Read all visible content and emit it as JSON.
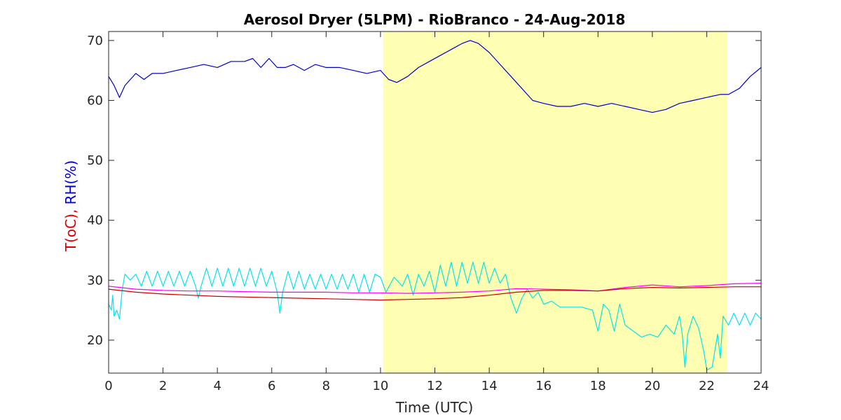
{
  "chart_data": {
    "type": "line",
    "title": "Aerosol Dryer (5LPM) - RioBranco - 24-Aug-2018",
    "xlabel": "Time (UTC)",
    "ylabel": {
      "t_part": "T(oC)",
      "separator": ", ",
      "rh_part": "RH(%)",
      "t_color": "#e00000",
      "rh_color": "#0000e0"
    },
    "xlim": [
      0,
      24
    ],
    "ylim": [
      14.5,
      71.5
    ],
    "x_ticks": [
      0,
      2,
      4,
      6,
      8,
      10,
      12,
      14,
      16,
      18,
      20,
      22,
      24
    ],
    "y_ticks": [
      20,
      30,
      40,
      50,
      60,
      70
    ],
    "grid": false,
    "daytime_shading": {
      "x_start": 10.1,
      "x_end": 22.75,
      "color": "#ffffb3"
    },
    "series": [
      {
        "color": "#0000cc",
        "x": [
          0,
          0.2,
          0.4,
          0.6,
          0.8,
          1.0,
          1.3,
          1.6,
          2.0,
          2.5,
          3.0,
          3.5,
          4.0,
          4.5,
          5.0,
          5.3,
          5.6,
          5.9,
          6.2,
          6.5,
          6.8,
          7.2,
          7.6,
          8.0,
          8.5,
          9.0,
          9.5,
          10.0,
          10.3,
          10.6,
          11.0,
          11.4,
          11.8,
          12.2,
          12.6,
          13.0,
          13.3,
          13.6,
          14.0,
          14.4,
          14.8,
          15.2,
          15.6,
          16.0,
          16.5,
          17.0,
          17.5,
          18.0,
          18.5,
          19.0,
          19.5,
          20.0,
          20.5,
          21.0,
          21.5,
          22.0,
          22.5,
          22.8,
          23.2,
          23.6,
          24.0
        ],
        "y": [
          64,
          62.5,
          60.5,
          62.5,
          63.5,
          64.5,
          63.5,
          64.5,
          64.5,
          65,
          65.5,
          66,
          65.5,
          66.5,
          66.5,
          67,
          65.5,
          67,
          65.5,
          65.5,
          66,
          65,
          66,
          65.5,
          65.5,
          65,
          64.5,
          65,
          63.5,
          63,
          64,
          65.5,
          66.5,
          67.5,
          68.5,
          69.5,
          70,
          69.5,
          68,
          66,
          64,
          62,
          60,
          59.5,
          59,
          59,
          59.5,
          59,
          59.5,
          59,
          58.5,
          58,
          58.5,
          59.5,
          60,
          60.5,
          61,
          61,
          62,
          64,
          65.5
        ]
      },
      {
        "color": "#00e5ee",
        "x": [
          0,
          0.1,
          0.15,
          0.2,
          0.3,
          0.4,
          0.5,
          0.6,
          0.8,
          1.0,
          1.2,
          1.4,
          1.6,
          1.8,
          2.0,
          2.2,
          2.4,
          2.6,
          2.8,
          3.0,
          3.2,
          3.3,
          3.4,
          3.6,
          3.8,
          4.0,
          4.2,
          4.4,
          4.6,
          4.8,
          5.0,
          5.2,
          5.4,
          5.6,
          5.8,
          6.0,
          6.2,
          6.3,
          6.4,
          6.6,
          6.8,
          7.0,
          7.2,
          7.4,
          7.6,
          7.8,
          8.0,
          8.2,
          8.4,
          8.6,
          8.8,
          9.0,
          9.2,
          9.4,
          9.6,
          9.8,
          10.0,
          10.2,
          10.5,
          10.8,
          11.0,
          11.2,
          11.4,
          11.6,
          11.8,
          12.0,
          12.2,
          12.4,
          12.6,
          12.8,
          13.0,
          13.2,
          13.4,
          13.6,
          13.8,
          14.0,
          14.2,
          14.4,
          14.6,
          14.8,
          15.0,
          15.2,
          15.4,
          15.6,
          15.8,
          16.0,
          16.3,
          16.6,
          17.0,
          17.4,
          17.8,
          18.0,
          18.2,
          18.4,
          18.6,
          18.8,
          19.0,
          19.3,
          19.6,
          19.9,
          20.2,
          20.5,
          20.8,
          21.0,
          21.1,
          21.2,
          21.3,
          21.5,
          21.7,
          21.9,
          22.0,
          22.2,
          22.4,
          22.5,
          22.6,
          22.8,
          23.0,
          23.2,
          23.4,
          23.6,
          23.8,
          24.0
        ],
        "y": [
          26,
          25,
          27.5,
          24,
          25,
          23.5,
          28.5,
          31,
          30,
          31,
          29,
          31.5,
          29,
          31.5,
          29,
          31.5,
          29,
          31.5,
          29,
          31.5,
          29,
          27,
          29,
          32,
          29,
          32,
          29,
          32,
          29,
          32,
          29,
          32,
          29,
          32,
          29,
          31.5,
          28,
          24.5,
          28,
          31.5,
          28.5,
          31.5,
          28.5,
          31,
          28.5,
          31,
          28.5,
          31,
          28.5,
          31,
          28.5,
          31,
          28,
          31,
          28,
          31,
          30.5,
          28,
          30.5,
          29,
          31,
          27.5,
          31,
          29,
          31.5,
          28,
          32.5,
          29,
          33,
          29,
          33,
          29.5,
          33,
          29.5,
          33,
          29.5,
          32,
          29.5,
          31,
          27,
          24.5,
          27,
          28.5,
          27,
          28,
          26,
          26.5,
          25.5,
          25.5,
          25.5,
          25,
          21.5,
          26,
          25,
          21.5,
          26,
          22.5,
          21.5,
          20.5,
          21,
          20.5,
          22.5,
          21,
          24,
          21,
          15.5,
          21,
          24,
          22,
          18,
          15,
          15.5,
          21,
          17,
          24,
          22.5,
          24.5,
          22.5,
          24.5,
          22.5,
          24.5,
          23.5
        ]
      },
      {
        "color": "#ff00ff",
        "x": [
          0,
          1,
          2,
          3,
          4,
          5,
          6,
          7,
          8,
          9,
          10,
          11,
          12,
          13,
          14,
          15,
          16,
          17,
          18,
          19,
          20,
          21,
          22,
          23,
          24
        ],
        "y": [
          29,
          28.5,
          28.3,
          28.2,
          28.2,
          28.1,
          28,
          28,
          28,
          27.9,
          27.9,
          27.8,
          27.9,
          28.0,
          28.2,
          28.6,
          28.5,
          28.4,
          28.2,
          28.8,
          29.2,
          28.9,
          29.1,
          29.4,
          29.5
        ]
      },
      {
        "color": "#cc0000",
        "x": [
          0,
          1,
          2,
          3,
          4,
          5,
          6,
          7,
          8,
          9,
          10,
          11,
          12,
          13,
          14,
          15,
          16,
          17,
          18,
          19,
          20,
          21,
          22,
          23,
          24
        ],
        "y": [
          28.5,
          28,
          27.7,
          27.5,
          27.3,
          27.2,
          27.1,
          27.0,
          26.9,
          26.8,
          26.7,
          26.8,
          26.9,
          27.1,
          27.5,
          28.0,
          28.3,
          28.3,
          28.2,
          28.6,
          28.8,
          28.7,
          28.8,
          28.9,
          28.9
        ]
      }
    ]
  }
}
